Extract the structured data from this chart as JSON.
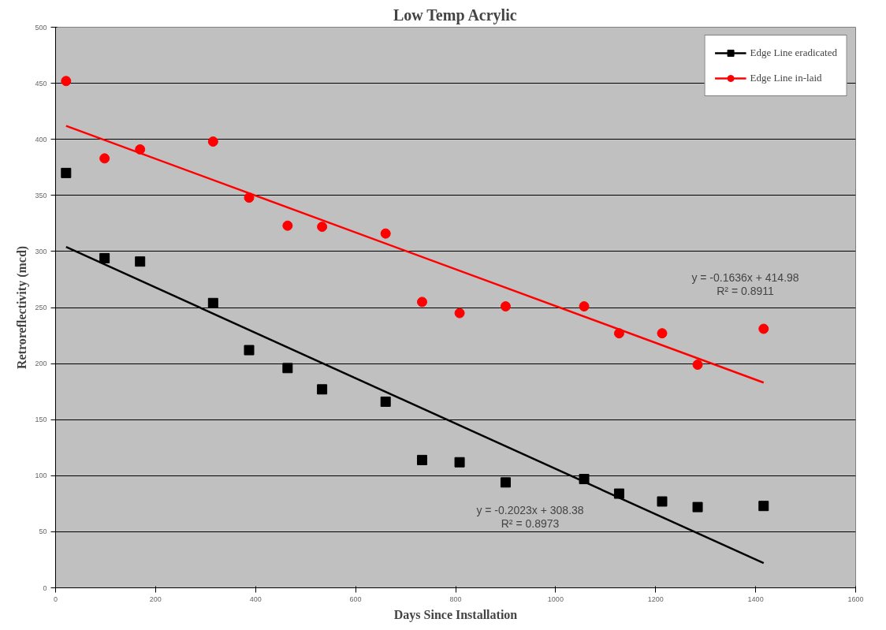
{
  "chart_data": {
    "type": "scatter",
    "title": "Low Temp Acrylic",
    "xlabel": "Days Since Installation",
    "ylabel": "Retroreflectivity (mcd)",
    "x": [
      21,
      98,
      169,
      315,
      387,
      464,
      533,
      660,
      733,
      808,
      900,
      1057,
      1127,
      1213,
      1284,
      1416
    ],
    "series": [
      {
        "name": "Edge Line eradicated",
        "color": "#000000",
        "marker": "square",
        "values": [
          370,
          294,
          291,
          254,
          212,
          196,
          177,
          166,
          114,
          112,
          94,
          97,
          84,
          77,
          72,
          73
        ]
      },
      {
        "name": "Edge Line in-laid",
        "color": "#ff0000",
        "marker": "circle",
        "values": [
          452,
          383,
          391,
          398,
          348,
          323,
          322,
          316,
          255,
          245,
          251,
          251,
          227,
          227,
          199,
          231
        ]
      },
      {
        "type": "line",
        "color": "#000000",
        "values": [
          304,
          null,
          null,
          null,
          null,
          null,
          null,
          null,
          null,
          null,
          null,
          null,
          null,
          null,
          null,
          22
        ]
      },
      {
        "type": "line",
        "color": "#ff0000",
        "values": [
          412,
          null,
          null,
          null,
          null,
          null,
          null,
          null,
          null,
          null,
          null,
          null,
          null,
          null,
          null,
          183
        ]
      }
    ],
    "annotations": [
      "y = -0.1636x + 414.98",
      "R² = 0.8911",
      "y = -0.2023x + 308.38",
      "R² = 0.8973"
    ],
    "xlim": [
      0,
      1600
    ],
    "xticks": [
      0,
      200,
      400,
      600,
      800,
      1000,
      1200,
      1400,
      1600
    ],
    "ylim": [
      0,
      500
    ],
    "yticks": [
      0,
      50,
      100,
      150,
      200,
      250,
      300,
      350,
      400,
      450,
      500
    ],
    "grid": "y",
    "legend": "top right"
  }
}
